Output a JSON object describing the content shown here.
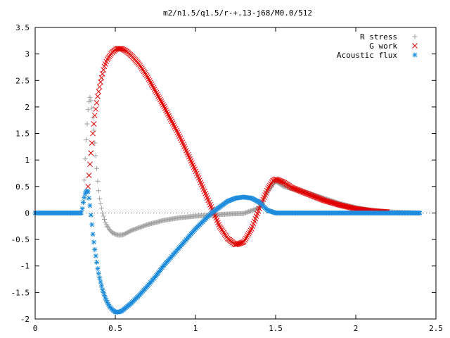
{
  "chart_data": {
    "type": "scatter",
    "title": "m2/n1.5/q1.5/r-+.13-j68/M0.0/512",
    "xlabel": "",
    "ylabel": "",
    "xlim": [
      0,
      2.5
    ],
    "ylim": [
      -2,
      3.5
    ],
    "xticks": [
      "0",
      "0.5",
      "1",
      "1.5",
      "2",
      "2.5"
    ],
    "yticks": [
      "-2",
      "-1.5",
      "-1",
      "-0.5",
      "0",
      "0.5",
      "1",
      "1.5",
      "2",
      "2.5",
      "3",
      "3.5"
    ],
    "legend_position": "top-right",
    "series": [
      {
        "name": "R stress",
        "marker": "plus",
        "color": "#a0a0a0",
        "x": [
          0.3,
          0.31,
          0.32,
          0.33,
          0.34,
          0.35,
          0.36,
          0.37,
          0.38,
          0.39,
          0.4,
          0.42,
          0.44,
          0.46,
          0.48,
          0.5,
          0.52,
          0.55,
          0.6,
          0.7,
          0.8,
          0.9,
          1.0,
          1.1,
          1.2,
          1.3,
          1.4,
          1.45,
          1.5,
          1.55,
          1.6,
          1.7,
          1.8,
          1.9,
          2.0,
          2.1,
          2.2,
          2.3,
          2.4
        ],
        "y": [
          0.2,
          0.9,
          1.5,
          1.95,
          2.2,
          2.1,
          1.8,
          1.4,
          1.0,
          0.6,
          0.3,
          0.0,
          -0.2,
          -0.3,
          -0.37,
          -0.4,
          -0.42,
          -0.41,
          -0.33,
          -0.22,
          -0.14,
          -0.09,
          -0.06,
          -0.04,
          -0.02,
          -0.01,
          0.1,
          0.4,
          0.6,
          0.5,
          0.46,
          0.38,
          0.28,
          0.18,
          0.1,
          0.05,
          0.02,
          0.01,
          0.0
        ]
      },
      {
        "name": "G work",
        "marker": "cross",
        "color": "#e00000",
        "x": [
          0.33,
          0.35,
          0.37,
          0.39,
          0.41,
          0.43,
          0.45,
          0.48,
          0.51,
          0.54,
          0.57,
          0.6,
          0.65,
          0.7,
          0.75,
          0.8,
          0.9,
          1.0,
          1.05,
          1.1,
          1.15,
          1.2,
          1.25,
          1.3,
          1.35,
          1.4,
          1.45,
          1.48,
          1.5,
          1.55,
          1.6,
          1.7,
          1.8,
          1.9,
          2.0,
          2.1,
          2.2
        ],
        "y": [
          0.5,
          1.2,
          1.8,
          2.2,
          2.5,
          2.75,
          2.9,
          3.03,
          3.1,
          3.1,
          3.05,
          2.97,
          2.8,
          2.57,
          2.3,
          2.03,
          1.45,
          0.8,
          0.45,
          0.1,
          -0.25,
          -0.48,
          -0.6,
          -0.55,
          -0.3,
          0.1,
          0.45,
          0.6,
          0.64,
          0.58,
          0.48,
          0.36,
          0.24,
          0.15,
          0.08,
          0.04,
          0.02
        ]
      },
      {
        "name": "Acoustic flux",
        "marker": "star",
        "color": "#1e8cdc",
        "x": [
          0.0,
          0.1,
          0.2,
          0.29,
          0.3,
          0.31,
          0.32,
          0.33,
          0.34,
          0.35,
          0.36,
          0.37,
          0.38,
          0.39,
          0.4,
          0.42,
          0.44,
          0.46,
          0.48,
          0.5,
          0.52,
          0.54,
          0.56,
          0.6,
          0.65,
          0.7,
          0.75,
          0.8,
          0.9,
          1.0,
          1.1,
          1.2,
          1.25,
          1.3,
          1.35,
          1.4,
          1.45,
          1.5,
          1.6,
          1.8,
          2.0,
          2.2,
          2.4
        ],
        "y": [
          0.0,
          0.0,
          0.0,
          0.0,
          0.2,
          0.35,
          0.42,
          0.4,
          0.2,
          -0.1,
          -0.4,
          -0.65,
          -0.85,
          -1.05,
          -1.2,
          -1.45,
          -1.62,
          -1.75,
          -1.82,
          -1.87,
          -1.87,
          -1.85,
          -1.8,
          -1.7,
          -1.55,
          -1.38,
          -1.2,
          -1.0,
          -0.65,
          -0.3,
          0.0,
          0.22,
          0.28,
          0.3,
          0.28,
          0.2,
          0.05,
          0.0,
          0.0,
          0.0,
          0.0,
          0.0,
          0.0
        ]
      }
    ]
  }
}
